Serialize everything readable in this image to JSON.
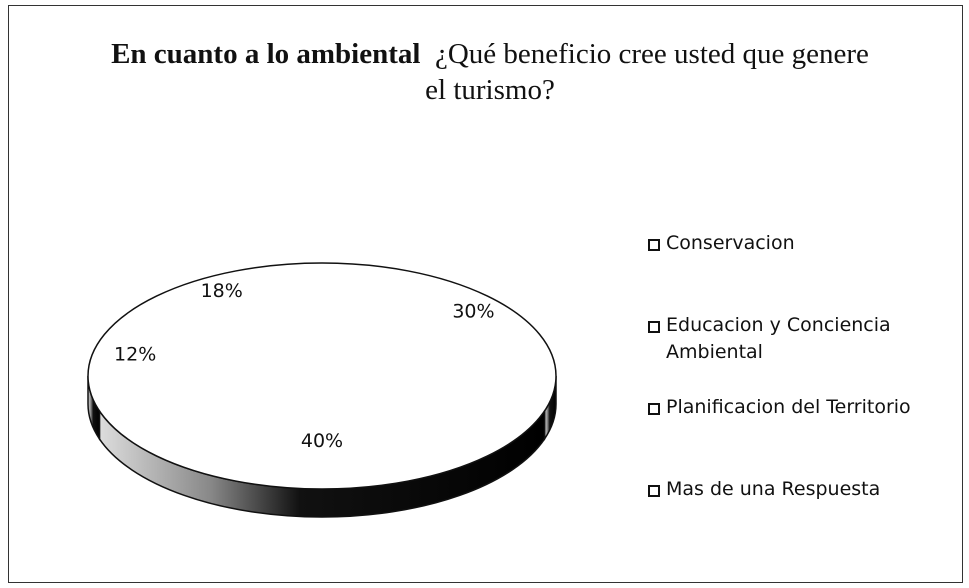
{
  "chart_data": {
    "type": "pie",
    "title": "En cuanto a lo ambiental",
    "subtitle": "¿Qué beneficio cree usted que genere el turismo?",
    "categories": [
      "Conservacion",
      "Educacion y Conciencia Ambiental",
      "Planificacion del Territorio",
      "Mas de una Respuesta"
    ],
    "values": [
      30,
      40,
      12,
      18
    ],
    "value_labels": [
      "30%",
      "40%",
      "12%",
      "18%"
    ],
    "colors": [
      "#ffffff",
      "#ffffff",
      "#ffffff",
      "#ffffff"
    ],
    "legend": "right"
  }
}
